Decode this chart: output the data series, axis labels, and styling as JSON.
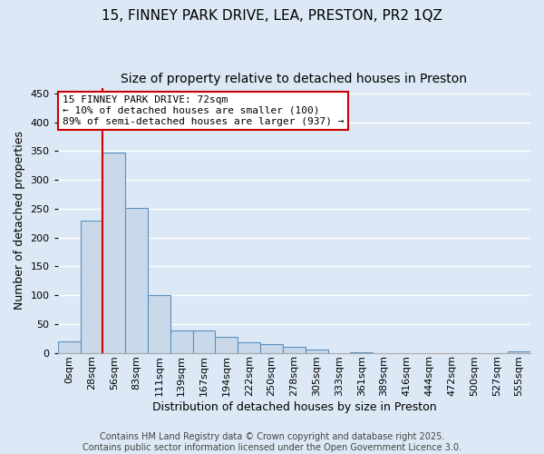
{
  "title": "15, FINNEY PARK DRIVE, LEA, PRESTON, PR2 1QZ",
  "subtitle": "Size of property relative to detached houses in Preston",
  "xlabel": "Distribution of detached houses by size in Preston",
  "ylabel": "Number of detached properties",
  "bar_color": "#c9d9ea",
  "bar_edge_color": "#5a90c0",
  "background_color": "#dce8f5",
  "grid_color": "#ffffff",
  "categories": [
    "0sqm",
    "28sqm",
    "56sqm",
    "83sqm",
    "111sqm",
    "139sqm",
    "167sqm",
    "194sqm",
    "222sqm",
    "250sqm",
    "278sqm",
    "305sqm",
    "333sqm",
    "361sqm",
    "389sqm",
    "416sqm",
    "444sqm",
    "472sqm",
    "500sqm",
    "527sqm",
    "555sqm"
  ],
  "values": [
    20,
    230,
    348,
    252,
    100,
    38,
    38,
    28,
    18,
    15,
    10,
    5,
    0,
    1,
    0,
    0,
    0,
    0,
    0,
    0,
    2
  ],
  "ylim": [
    0,
    460
  ],
  "yticks": [
    0,
    50,
    100,
    150,
    200,
    250,
    300,
    350,
    400,
    450
  ],
  "annotation_text": "15 FINNEY PARK DRIVE: 72sqm\n← 10% of detached houses are smaller (100)\n89% of semi-detached houses are larger (937) →",
  "annotation_box_color": "#ffffff",
  "annotation_border_color": "#cc0000",
  "red_line_color": "#cc0000",
  "footnote_line1": "Contains HM Land Registry data © Crown copyright and database right 2025.",
  "footnote_line2": "Contains public sector information licensed under the Open Government Licence 3.0.",
  "title_fontsize": 11,
  "subtitle_fontsize": 10,
  "label_fontsize": 9,
  "tick_fontsize": 8,
  "annotation_fontsize": 8,
  "footnote_fontsize": 7
}
